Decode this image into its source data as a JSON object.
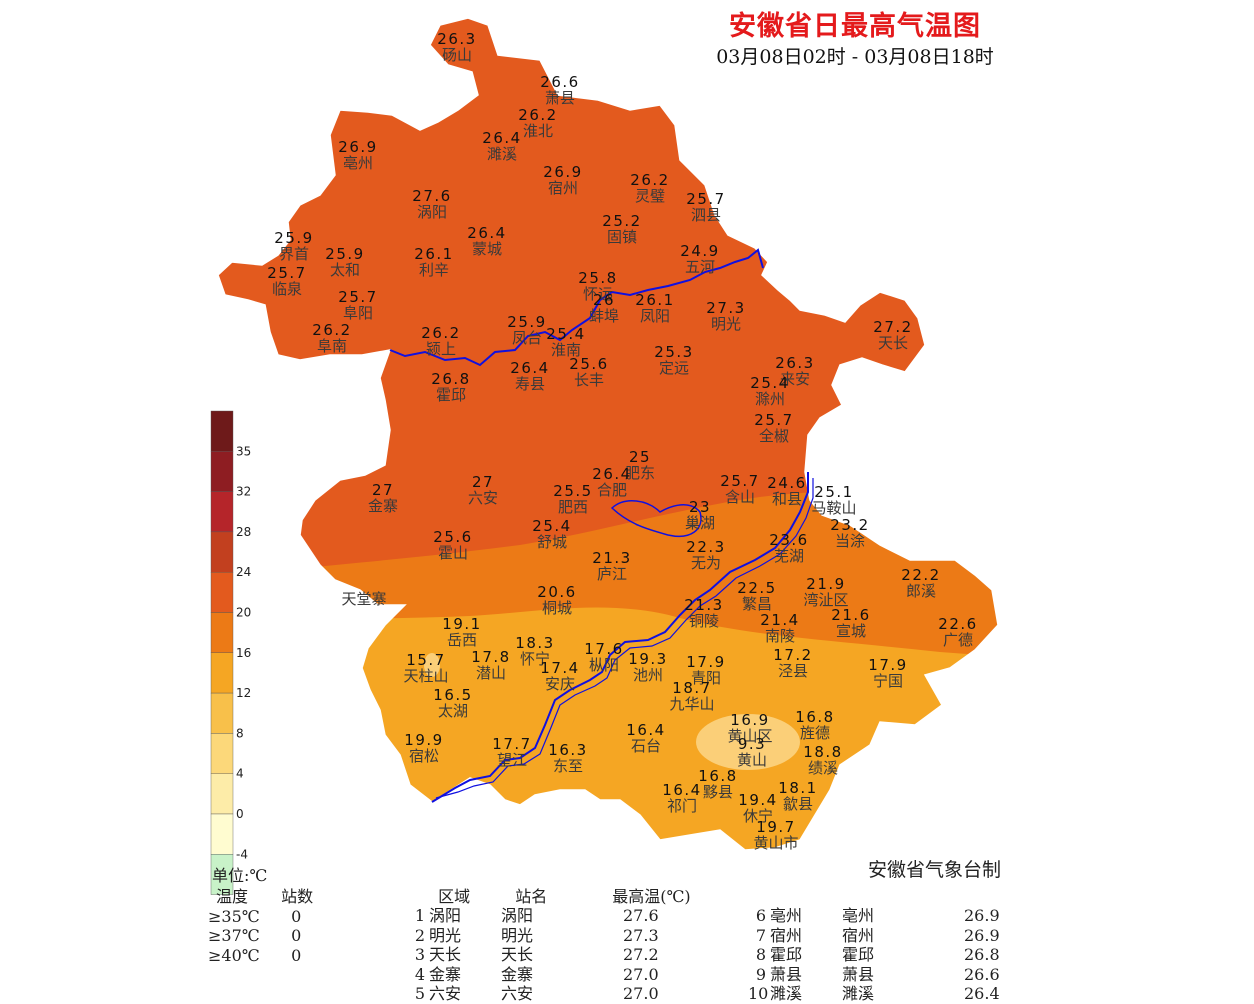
{
  "title": "安徽省日最高气温图",
  "subtitle": "03月08日02时  -  03月08日18时",
  "credit": "安徽省气象台制",
  "legend": {
    "unit": "单位:℃",
    "ticks": [
      "35",
      "32",
      "28",
      "24",
      "20",
      "16",
      "12",
      "8",
      "4",
      "0",
      "-4"
    ],
    "colors": [
      "#6e1a1a",
      "#8e1d22",
      "#b5252a",
      "#c2401f",
      "#e35a1e",
      "#ec7a16",
      "#f5a623",
      "#f8c04a",
      "#fcd87a",
      "#fdeca8",
      "#fffcd0",
      "#c8f2c8"
    ]
  },
  "zones": {
    "north_color": "#e35a1e",
    "middle_color": "#ec7a16",
    "south_color": "#f5a623",
    "light_color": "#fbcf78",
    "river_color": "#1010e0",
    "lake_color": "#ffffff"
  },
  "stations": [
    {
      "v": "26.3",
      "n": "砀山"
    },
    {
      "v": "26.6",
      "n": "萧县"
    },
    {
      "v": "26.2",
      "n": "淮北"
    },
    {
      "v": "26.4",
      "n": "濉溪"
    },
    {
      "v": "26.9",
      "n": "亳州"
    },
    {
      "v": "26.9",
      "n": "宿州"
    },
    {
      "v": "26.2",
      "n": "灵璧"
    },
    {
      "v": "25.7",
      "n": "泗县"
    },
    {
      "v": "27.6",
      "n": "涡阳"
    },
    {
      "v": "25.2",
      "n": "固镇"
    },
    {
      "v": "26.4",
      "n": "蒙城"
    },
    {
      "v": "25.9",
      "n": "界首"
    },
    {
      "v": "25.9",
      "n": "太和"
    },
    {
      "v": "26.1",
      "n": "利辛"
    },
    {
      "v": "24.9",
      "n": "五河"
    },
    {
      "v": "25.7",
      "n": "临泉"
    },
    {
      "v": "25.8",
      "n": "怀远"
    },
    {
      "v": "26",
      "n": "蚌埠"
    },
    {
      "v": "26.1",
      "n": "凤阳"
    },
    {
      "v": "25.7",
      "n": "阜阳"
    },
    {
      "v": "27.3",
      "n": "明光"
    },
    {
      "v": "27.2",
      "n": "天长"
    },
    {
      "v": "26.2",
      "n": "阜南"
    },
    {
      "v": "26.2",
      "n": "颍上"
    },
    {
      "v": "25.9",
      "n": "凤台"
    },
    {
      "v": "25.4",
      "n": "淮南"
    },
    {
      "v": "25.3",
      "n": "定远"
    },
    {
      "v": "26.8",
      "n": "霍邱"
    },
    {
      "v": "26.4",
      "n": "寿县"
    },
    {
      "v": "25.6",
      "n": "长丰"
    },
    {
      "v": "26.3",
      "n": "来安"
    },
    {
      "v": "25.4",
      "n": "滁州"
    },
    {
      "v": "25.7",
      "n": "全椒"
    },
    {
      "v": "25",
      "n": "肥东"
    },
    {
      "v": "26.4",
      "n": "合肥"
    },
    {
      "v": "27",
      "n": "金寨"
    },
    {
      "v": "27",
      "n": "六安"
    },
    {
      "v": "25.5",
      "n": "肥西"
    },
    {
      "v": "25.7",
      "n": "含山"
    },
    {
      "v": "24.6",
      "n": "和县"
    },
    {
      "v": "25.1",
      "n": "马鞍山"
    },
    {
      "v": "23",
      "n": "巢湖"
    },
    {
      "v": "23.2",
      "n": "当涂"
    },
    {
      "v": "25.6",
      "n": "霍山"
    },
    {
      "v": "25.4",
      "n": "舒城"
    },
    {
      "v": "22.3",
      "n": "无为"
    },
    {
      "v": "23.6",
      "n": "芜湖"
    },
    {
      "v": "21.3",
      "n": "庐江"
    },
    {
      "v": "21.9",
      "n": "湾沚区"
    },
    {
      "v": "22.2",
      "n": "郎溪"
    },
    {
      "v": "22.5",
      "n": "繁昌"
    },
    {
      "v": "20.6",
      "n": "桐城"
    },
    {
      "v": "21.6",
      "n": "宣城"
    },
    {
      "v": "22.6",
      "n": "广德"
    },
    {
      "v": "21.3",
      "n": "铜陵"
    },
    {
      "v": "21.4",
      "n": "南陵"
    },
    {
      "v": "19.1",
      "n": "岳西"
    },
    {
      "v": "18.3",
      "n": "怀宁"
    },
    {
      "v": "17.6",
      "n": "枞阳"
    },
    {
      "v": "15.7",
      "n": "天柱山"
    },
    {
      "v": "17.8",
      "n": "潜山"
    },
    {
      "v": "17.4",
      "n": "安庆"
    },
    {
      "v": "19.3",
      "n": "池州"
    },
    {
      "v": "17.9",
      "n": "青阳"
    },
    {
      "v": "17.2",
      "n": "泾县"
    },
    {
      "v": "17.9",
      "n": "宁国"
    },
    {
      "v": "18.7",
      "n": "九华山"
    },
    {
      "v": "16.5",
      "n": "太湖"
    },
    {
      "v": "16.4",
      "n": "石台"
    },
    {
      "v": "16.9",
      "n": "黄山区"
    },
    {
      "v": "16.8",
      "n": "旌德"
    },
    {
      "v": "19.9",
      "n": "宿松"
    },
    {
      "v": "17.7",
      "n": "望江"
    },
    {
      "v": "16.3",
      "n": "东至"
    },
    {
      "v": "9.3",
      "n": "黄山"
    },
    {
      "v": "18.8",
      "n": "绩溪"
    },
    {
      "v": "16.8",
      "n": "黟县"
    },
    {
      "v": "16.4",
      "n": "祁门"
    },
    {
      "v": "18.1",
      "n": "歙县"
    },
    {
      "v": "19.4",
      "n": "休宁"
    },
    {
      "v": "19.7",
      "n": "黄山市"
    }
  ],
  "extra_labels": [
    "天堂寨"
  ],
  "count_table": {
    "headers": [
      "温度",
      "站数"
    ],
    "rows": [
      [
        "≥35℃",
        "0"
      ],
      [
        "≥37℃",
        "0"
      ],
      [
        "≥40℃",
        "0"
      ]
    ]
  },
  "rank_table": {
    "headers": [
      "区域",
      "站名",
      "最高温(℃)"
    ],
    "left": [
      [
        "1",
        "涡阳",
        "涡阳",
        "27.6"
      ],
      [
        "2",
        "明光",
        "明光",
        "27.3"
      ],
      [
        "3",
        "天长",
        "天长",
        "27.2"
      ],
      [
        "4",
        "金寨",
        "金寨",
        "27.0"
      ],
      [
        "5",
        "六安",
        "六安",
        "27.0"
      ]
    ],
    "right": [
      [
        "6",
        "亳州",
        "亳州",
        "26.9"
      ],
      [
        "7",
        "宿州",
        "宿州",
        "26.9"
      ],
      [
        "8",
        "霍邱",
        "霍邱",
        "26.8"
      ],
      [
        "9",
        "萧县",
        "萧县",
        "26.6"
      ],
      [
        "10",
        "濉溪",
        "濉溪",
        "26.4"
      ]
    ]
  }
}
